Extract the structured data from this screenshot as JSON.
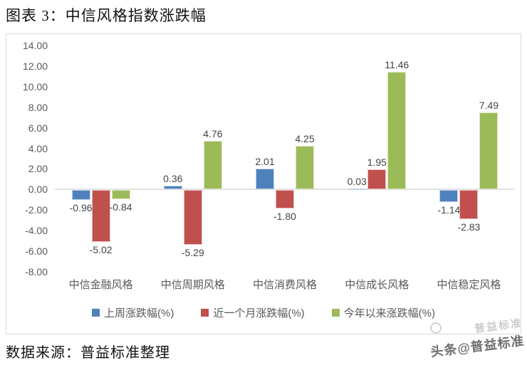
{
  "page": {
    "title": "图表 3：中信风格指数涨跌幅",
    "source_note": "数据来源：普益标准整理",
    "watermark_main": "头条@普益标准",
    "watermark_ghost": "普益标准"
  },
  "chart_data": {
    "type": "bar",
    "title": "中信风格指数涨跌幅",
    "categories": [
      "中信金融风格",
      "中信周期风格",
      "中信消费风格",
      "中信成长风格",
      "中信稳定风格"
    ],
    "series": [
      {
        "name": "上周涨跌幅(%)",
        "color": "#4F81BD",
        "values": [
          -0.96,
          0.36,
          2.01,
          0.03,
          -1.14
        ]
      },
      {
        "name": "近一个月涨跌幅(%)",
        "color": "#C0504D",
        "values": [
          -5.02,
          -5.29,
          -1.8,
          1.95,
          -2.83
        ]
      },
      {
        "name": "今年以来涨跌幅(%)",
        "color": "#9BBB59",
        "values": [
          -0.84,
          4.76,
          4.25,
          11.46,
          7.49
        ]
      }
    ],
    "ylim": [
      -8,
      14
    ],
    "ytick_step": 2,
    "value_label_decimals": 2,
    "grid": false,
    "legend_position": "bottom",
    "colors": {
      "axis_text": "#595959",
      "value_label_text": "#444444",
      "zero_line": "#e2e2e2",
      "frame_border": "#d9d9d9"
    }
  }
}
